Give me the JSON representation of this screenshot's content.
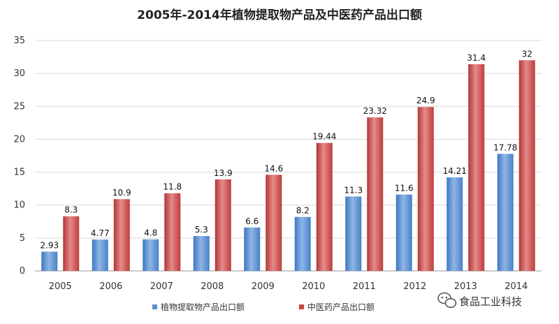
{
  "chart_data": {
    "type": "bar",
    "title": "2005年-2014年植物提取物产品及中医药产品出口额",
    "categories": [
      "2005",
      "2006",
      "2007",
      "2008",
      "2009",
      "2010",
      "2011",
      "2012",
      "2013",
      "2014"
    ],
    "series": [
      {
        "name": "植物提取物产品出口额",
        "color": "#5a8fd0",
        "values": [
          2.93,
          4.77,
          4.8,
          5.3,
          6.6,
          8.2,
          11.3,
          11.6,
          14.21,
          17.78
        ],
        "labels": [
          "2.93",
          "4.77",
          "4.8",
          "5.3",
          "6.6",
          "8.2",
          "11.3",
          "11.6",
          "14.21",
          "17.78"
        ]
      },
      {
        "name": "中医药产品出口额",
        "color": "#c94848",
        "values": [
          8.3,
          10.9,
          11.8,
          13.9,
          14.6,
          19.44,
          23.32,
          24.9,
          31.4,
          32
        ],
        "labels": [
          "8.3",
          "10.9",
          "11.8",
          "13.9",
          "14.6",
          "19.44",
          "23.32",
          "24.9",
          "31.4",
          "32"
        ]
      }
    ],
    "ylim": [
      0,
      35
    ],
    "yticks": [
      "0",
      "5",
      "10",
      "15",
      "20",
      "25",
      "30",
      "35"
    ],
    "grid": true,
    "legend": "bottom"
  },
  "watermark": {
    "text": "食品工业科技",
    "icon": "wechat-icon"
  }
}
